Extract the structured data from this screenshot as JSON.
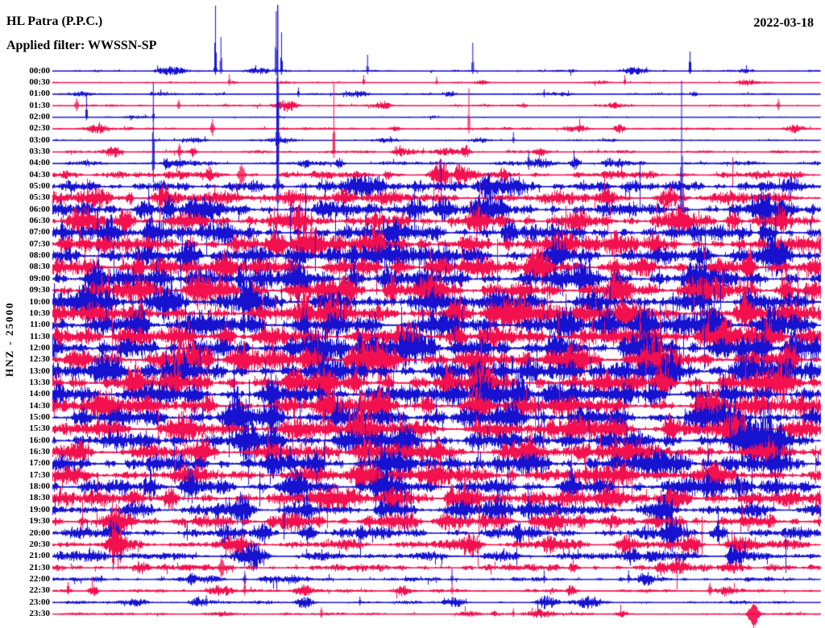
{
  "header": {
    "station": "HL Patra (P.P.C.)",
    "filter_label": "Applied filter: WWSSN-SP",
    "date": "2022-03-18"
  },
  "axis": {
    "left_label": "HNZ - 25000"
  },
  "colors": {
    "blue": "#1612d0",
    "red": "#f2104e",
    "background": "#ffffff",
    "text": "#000000"
  },
  "chart_data": {
    "type": "line",
    "subtype": "helicorder_day_plot",
    "title": "HL Patra (P.P.C.)",
    "date": "2022-03-18",
    "filter": "WWSSN-SP",
    "ylabel": "HNZ - 25000",
    "row_interval_minutes": 30,
    "grid": false,
    "legend": false,
    "trace_color_cycle": [
      "#1612d0",
      "#f2104e"
    ],
    "rows": [
      {
        "time": "00:00",
        "color": "blue",
        "amp": 1.2,
        "burst": 5,
        "nbursts": 6,
        "spikes": [
          [
            0.212,
            81,
            5,
            1.2
          ],
          [
            0.219,
            42,
            4,
            1.1
          ],
          [
            0.291,
            74,
            6,
            1.2
          ],
          [
            0.298,
            48,
            5,
            1.1
          ],
          [
            0.41,
            20,
            4,
            1.1
          ],
          [
            0.547,
            35,
            4,
            1.1
          ],
          [
            0.83,
            24,
            4,
            1.2
          ]
        ]
      },
      {
        "time": "00:30",
        "color": "red",
        "amp": 0.9,
        "burst": 4,
        "nbursts": 5,
        "spikes": [
          [
            0.23,
            10,
            4,
            1.1
          ],
          [
            0.405,
            9,
            3,
            1.1
          ],
          [
            0.5,
            7,
            3,
            1.1
          ],
          [
            0.745,
            9,
            3,
            1.1
          ]
        ]
      },
      {
        "time": "01:00",
        "color": "blue",
        "amp": 1.1,
        "burst": 4,
        "nbursts": 6,
        "spikes": [
          [
            0.32,
            8,
            4,
            1.2
          ],
          [
            0.64,
            6,
            4,
            1.1
          ]
        ]
      },
      {
        "time": "01:30",
        "color": "red",
        "amp": 1.3,
        "burst": 7,
        "nbursts": 5,
        "spikes": [
          [
            0.031,
            9,
            7,
            2.2
          ],
          [
            0.164,
            7,
            5,
            1.6
          ],
          [
            0.945,
            8,
            6,
            1.6
          ]
        ]
      },
      {
        "time": "02:00",
        "color": "blue",
        "amp": 0.7,
        "burst": 2,
        "nbursts": 2,
        "spikes": [
          [
            0.044,
            28,
            4,
            1.1
          ],
          [
            0.131,
            12,
            6,
            1.1
          ]
        ]
      },
      {
        "time": "02:30",
        "color": "red",
        "amp": 1.4,
        "burst": 7,
        "nbursts": 6,
        "spikes": [
          [
            0.208,
            12,
            9,
            2.2
          ],
          [
            0.542,
            50,
            6,
            1.1
          ]
        ]
      },
      {
        "time": "03:00",
        "color": "blue",
        "amp": 1.0,
        "burst": 4,
        "nbursts": 5,
        "spikes": [
          [
            0.293,
            168,
            62,
            1.2
          ],
          [
            0.6,
            10,
            4,
            1.1
          ]
        ]
      },
      {
        "time": "03:30",
        "color": "red",
        "amp": 1.7,
        "burst": 8,
        "nbursts": 7,
        "spikes": [
          [
            0.366,
            85,
            8,
            1.1
          ],
          [
            0.165,
            10,
            8,
            1.8
          ]
        ]
      },
      {
        "time": "04:00",
        "color": "blue",
        "amp": 2.4,
        "burst": 8,
        "nbursts": 8,
        "spikes": [
          [
            0.131,
            100,
            24,
            1.1
          ],
          [
            0.62,
            15,
            8,
            1.3
          ]
        ]
      },
      {
        "time": "04:30",
        "color": "red",
        "amp": 4.5,
        "burst": 12,
        "nbursts": 8,
        "spikes": [
          [
            0.246,
            14,
            14,
            4.0
          ]
        ]
      },
      {
        "time": "05:00",
        "color": "blue",
        "amp": 6.0,
        "burst": 14,
        "nbursts": 8,
        "spikes": [
          [
            0.293,
            225,
            45,
            1.2
          ]
        ]
      },
      {
        "time": "05:30",
        "color": "red",
        "amp": 7.0,
        "burst": 14,
        "nbursts": 9,
        "spikes": []
      },
      {
        "time": "06:00",
        "color": "blue",
        "amp": 8.0,
        "burst": 15,
        "nbursts": 9,
        "spikes": [
          [
            0.819,
            160,
            28,
            1.2
          ]
        ]
      },
      {
        "time": "06:30",
        "color": "red",
        "amp": 8.5,
        "burst": 15,
        "nbursts": 9,
        "spikes": []
      },
      {
        "time": "07:00",
        "color": "blue",
        "amp": 9.0,
        "burst": 16,
        "nbursts": 9,
        "spikes": []
      },
      {
        "time": "07:30",
        "color": "red",
        "amp": 9.5,
        "burst": 16,
        "nbursts": 10,
        "spikes": []
      },
      {
        "time": "08:00",
        "color": "blue",
        "amp": 10.0,
        "burst": 17,
        "nbursts": 10,
        "spikes": []
      },
      {
        "time": "08:30",
        "color": "red",
        "amp": 10.5,
        "burst": 17,
        "nbursts": 10,
        "spikes": []
      },
      {
        "time": "09:00",
        "color": "blue",
        "amp": 11.0,
        "burst": 18,
        "nbursts": 10,
        "spikes": []
      },
      {
        "time": "09:30",
        "color": "red",
        "amp": 11.0,
        "burst": 18,
        "nbursts": 10,
        "spikes": []
      },
      {
        "time": "10:00",
        "color": "blue",
        "amp": 11.5,
        "burst": 18,
        "nbursts": 10,
        "spikes": []
      },
      {
        "time": "10:30",
        "color": "red",
        "amp": 11.5,
        "burst": 19,
        "nbursts": 11,
        "spikes": []
      },
      {
        "time": "11:00",
        "color": "blue",
        "amp": 12.0,
        "burst": 19,
        "nbursts": 11,
        "spikes": []
      },
      {
        "time": "11:30",
        "color": "red",
        "amp": 12.0,
        "burst": 19,
        "nbursts": 11,
        "spikes": []
      },
      {
        "time": "12:00",
        "color": "blue",
        "amp": 12.0,
        "burst": 20,
        "nbursts": 11,
        "spikes": []
      },
      {
        "time": "12:30",
        "color": "red",
        "amp": 12.0,
        "burst": 20,
        "nbursts": 11,
        "spikes": []
      },
      {
        "time": "13:00",
        "color": "blue",
        "amp": 12.0,
        "burst": 20,
        "nbursts": 11,
        "spikes": []
      },
      {
        "time": "13:30",
        "color": "red",
        "amp": 12.0,
        "burst": 19,
        "nbursts": 11,
        "spikes": []
      },
      {
        "time": "14:00",
        "color": "blue",
        "amp": 11.5,
        "burst": 19,
        "nbursts": 10,
        "spikes": []
      },
      {
        "time": "14:30",
        "color": "red",
        "amp": 11.5,
        "burst": 19,
        "nbursts": 10,
        "spikes": []
      },
      {
        "time": "15:00",
        "color": "blue",
        "amp": 11.0,
        "burst": 18,
        "nbursts": 10,
        "spikes": []
      },
      {
        "time": "15:30",
        "color": "red",
        "amp": 11.0,
        "burst": 18,
        "nbursts": 10,
        "spikes": []
      },
      {
        "time": "16:00",
        "color": "blue",
        "amp": 11.0,
        "burst": 18,
        "nbursts": 10,
        "spikes": []
      },
      {
        "time": "16:30",
        "color": "red",
        "amp": 10.5,
        "burst": 17,
        "nbursts": 10,
        "spikes": []
      },
      {
        "time": "17:00",
        "color": "blue",
        "amp": 10.0,
        "burst": 17,
        "nbursts": 9,
        "spikes": []
      },
      {
        "time": "17:30",
        "color": "red",
        "amp": 9.5,
        "burst": 16,
        "nbursts": 9,
        "spikes": []
      },
      {
        "time": "18:00",
        "color": "blue",
        "amp": 9.0,
        "burst": 16,
        "nbursts": 9,
        "spikes": []
      },
      {
        "time": "18:30",
        "color": "red",
        "amp": 8.5,
        "burst": 15,
        "nbursts": 9,
        "spikes": []
      },
      {
        "time": "19:00",
        "color": "blue",
        "amp": 8.0,
        "burst": 15,
        "nbursts": 8,
        "spikes": []
      },
      {
        "time": "19:30",
        "color": "red",
        "amp": 7.5,
        "burst": 14,
        "nbursts": 8,
        "spikes": []
      },
      {
        "time": "20:00",
        "color": "blue",
        "amp": 6.5,
        "burst": 13,
        "nbursts": 8,
        "spikes": []
      },
      {
        "time": "20:30",
        "color": "red",
        "amp": 6.0,
        "burst": 13,
        "nbursts": 8,
        "spikes": []
      },
      {
        "time": "21:00",
        "color": "blue",
        "amp": 5.0,
        "burst": 12,
        "nbursts": 7,
        "spikes": []
      },
      {
        "time": "21:30",
        "color": "red",
        "amp": 4.0,
        "burst": 10,
        "nbursts": 6,
        "spikes": [
          [
            0.22,
            12,
            12,
            3.5
          ]
        ]
      },
      {
        "time": "22:00",
        "color": "blue",
        "amp": 2.4,
        "burst": 8,
        "nbursts": 6,
        "spikes": [
          [
            0.25,
            10,
            10,
            1.5
          ],
          [
            0.52,
            13,
            6,
            1.2
          ],
          [
            0.64,
            11,
            5,
            1.2
          ],
          [
            0.75,
            11,
            5,
            1.2
          ]
        ]
      },
      {
        "time": "22:30",
        "color": "red",
        "amp": 2.0,
        "burst": 8,
        "nbursts": 6,
        "spikes": [
          [
            0.02,
            11,
            5,
            1.3
          ],
          [
            0.25,
            13,
            6,
            1.3
          ],
          [
            0.52,
            9,
            5,
            1.2
          ],
          [
            0.856,
            10,
            6,
            2.5
          ]
        ]
      },
      {
        "time": "23:00",
        "color": "blue",
        "amp": 1.8,
        "burst": 7,
        "nbursts": 6,
        "spikes": [
          [
            0.2,
            9,
            5,
            1.3
          ],
          [
            0.4,
            7,
            4,
            1.2
          ],
          [
            0.52,
            7,
            6,
            1.2
          ]
        ]
      },
      {
        "time": "23:30",
        "color": "red",
        "amp": 1.5,
        "burst": 6,
        "nbursts": 5,
        "spikes": [
          [
            0.913,
            16,
            20,
            6.0
          ],
          [
            0.35,
            8,
            5,
            1.5
          ],
          [
            0.6,
            7,
            4,
            1.3
          ]
        ]
      }
    ]
  }
}
